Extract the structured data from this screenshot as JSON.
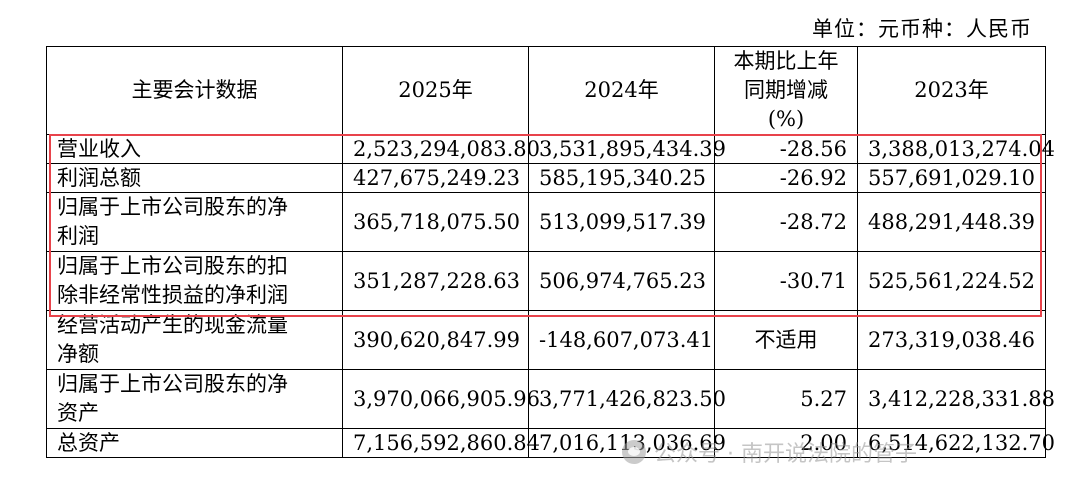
{
  "unit_note": "单位：元币种：人民币",
  "table": {
    "headers": {
      "item": "主要会计数据",
      "y2025": "2025年",
      "y2024": "2024年",
      "change_line1": "本期比上年",
      "change_line2": "同期增减",
      "change_line3": "(%)",
      "y2023": "2023年"
    },
    "rows": [
      {
        "label": "营业收入",
        "y2025": "2,523,294,083.80",
        "y2024": "3,531,895,434.39",
        "change": "-28.56",
        "y2023": "3,388,013,274.04"
      },
      {
        "label": "利润总额",
        "y2025": "427,675,249.23",
        "y2024": "585,195,340.25",
        "change": "-26.92",
        "y2023": "557,691,029.10"
      },
      {
        "label_line1": "归属于上市公司股东的净",
        "label_line2": "利润",
        "y2025": "365,718,075.50",
        "y2024": "513,099,517.39",
        "change": "-28.72",
        "y2023": "488,291,448.39"
      },
      {
        "label_line1": "归属于上市公司股东的扣",
        "label_line2": "除非经常性损益的净利润",
        "y2025": "351,287,228.63",
        "y2024": "506,974,765.23",
        "change": "-30.71",
        "y2023": "525,561,224.52"
      },
      {
        "label_line1": "经营活动产生的现金流量",
        "label_line2": "净额",
        "y2025": "390,620,847.99",
        "y2024": "-148,607,073.41",
        "change": "不适用",
        "y2023": "273,319,038.46"
      },
      {
        "label_line1": "归属于上市公司股东的净",
        "label_line2": "资产",
        "y2025": "3,970,066,905.96",
        "y2024": "3,771,426,823.50",
        "change": "5.27",
        "y2023": "3,412,228,331.88"
      },
      {
        "label": "总资产",
        "y2025": "7,156,592,860.84",
        "y2024": "7,016,113,036.69",
        "change": "2.00",
        "y2023": "6,514,622,132.70"
      }
    ]
  },
  "watermark": {
    "text": "公众号 · 南开说法院的管子",
    "icon": "wechat-icon"
  },
  "colors": {
    "highlight_border": "#e8434b",
    "text": "#000000",
    "watermark": "#969696"
  }
}
